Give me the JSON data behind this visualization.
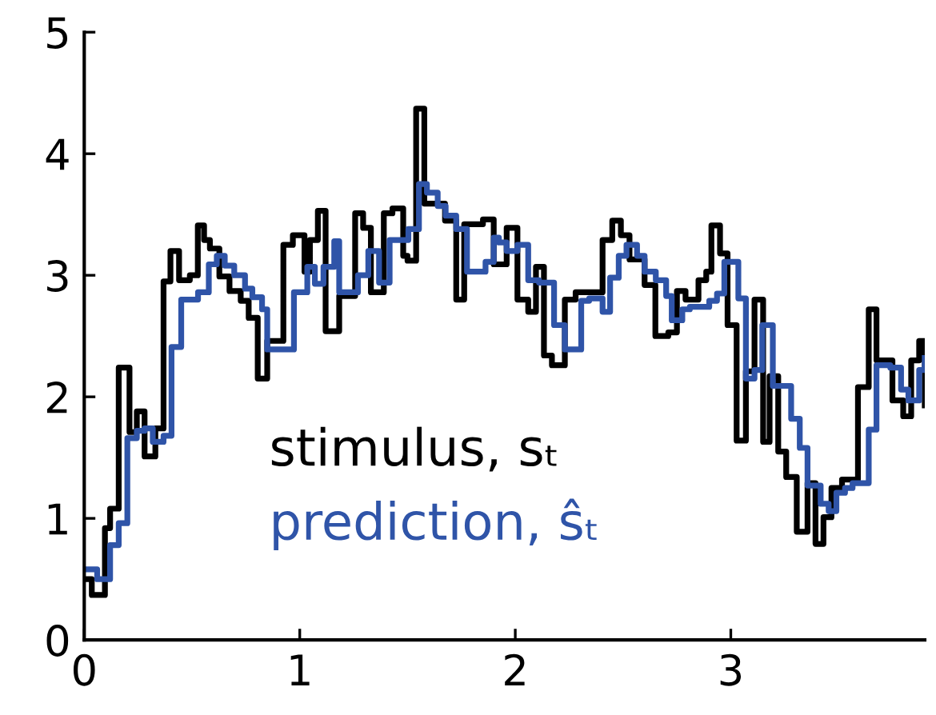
{
  "chart_data": {
    "type": "step",
    "xlim": [
      0,
      3.9
    ],
    "ylim": [
      0,
      5
    ],
    "xticks": [
      0,
      1,
      2,
      3
    ],
    "yticks": [
      0,
      1,
      2,
      3,
      4,
      5
    ],
    "grid": false,
    "legend": false,
    "series": [
      {
        "name": "stimulus, sₜ",
        "color": "#000000",
        "x": [
          0,
          0.035,
          0.096,
          0.12,
          0.16,
          0.21,
          0.244,
          0.28,
          0.33,
          0.368,
          0.4,
          0.44,
          0.49,
          0.527,
          0.556,
          0.583,
          0.627,
          0.674,
          0.726,
          0.763,
          0.805,
          0.849,
          0.924,
          0.968,
          1.022,
          1.047,
          1.084,
          1.12,
          1.183,
          1.257,
          1.294,
          1.33,
          1.39,
          1.43,
          1.48,
          1.5,
          1.54,
          1.578,
          1.674,
          1.726,
          1.763,
          1.85,
          1.9,
          1.96,
          2.01,
          2.06,
          2.096,
          2.133,
          2.17,
          2.23,
          2.28,
          2.405,
          2.45,
          2.49,
          2.53,
          2.6,
          2.65,
          2.71,
          2.75,
          2.79,
          2.85,
          2.886,
          2.91,
          2.95,
          2.985,
          3.027,
          3.07,
          3.11,
          3.15,
          3.18,
          3.22,
          3.257,
          3.306,
          3.356,
          3.393,
          3.43,
          3.467,
          3.516,
          3.59,
          3.64,
          3.676,
          3.75,
          3.8,
          3.837,
          3.874,
          3.9
        ],
        "values": [
          0.5,
          0.37,
          0.92,
          1.08,
          2.24,
          1.71,
          1.88,
          1.51,
          1.74,
          2.95,
          3.2,
          2.96,
          3.0,
          3.41,
          3.29,
          3.22,
          2.99,
          2.87,
          2.79,
          2.65,
          2.15,
          2.46,
          3.25,
          3.33,
          3.03,
          3.29,
          3.53,
          2.54,
          2.83,
          3.51,
          3.39,
          2.86,
          3.51,
          3.55,
          3.16,
          3.12,
          4.37,
          3.59,
          3.45,
          2.8,
          3.42,
          3.46,
          3.09,
          3.39,
          2.8,
          2.7,
          3.07,
          2.34,
          2.26,
          2.8,
          2.86,
          3.29,
          3.45,
          3.33,
          3.13,
          2.92,
          2.5,
          2.53,
          2.87,
          2.8,
          2.96,
          3.03,
          3.41,
          3.18,
          2.59,
          1.64,
          2.21,
          2.8,
          1.63,
          2.17,
          1.55,
          1.34,
          0.89,
          1.29,
          0.79,
          1.01,
          1.25,
          1.32,
          2.08,
          2.72,
          2.3,
          1.97,
          1.84,
          2.3,
          2.46,
          1.93
        ]
      },
      {
        "name": "prediction, ŝₜ",
        "color": "#2f54a8",
        "x": [
          0,
          0.06,
          0.12,
          0.16,
          0.2,
          0.244,
          0.28,
          0.318,
          0.368,
          0.405,
          0.45,
          0.528,
          0.578,
          0.615,
          0.652,
          0.696,
          0.746,
          0.78,
          0.825,
          0.849,
          0.973,
          1.035,
          1.07,
          1.11,
          1.16,
          1.183,
          1.27,
          1.318,
          1.368,
          1.417,
          1.504,
          1.553,
          1.59,
          1.64,
          1.677,
          1.726,
          1.776,
          1.862,
          1.9,
          1.924,
          1.96,
          2.01,
          2.06,
          2.11,
          2.18,
          2.23,
          2.306,
          2.343,
          2.405,
          2.44,
          2.48,
          2.516,
          2.565,
          2.6,
          2.652,
          2.7,
          2.726,
          2.775,
          2.81,
          2.9,
          2.936,
          2.97,
          3.035,
          3.07,
          3.11,
          3.146,
          3.195,
          3.28,
          3.32,
          3.356,
          3.417,
          3.454,
          3.49,
          3.53,
          3.565,
          3.64,
          3.676,
          3.74,
          3.79,
          3.824,
          3.874,
          3.9
        ],
        "values": [
          0.58,
          0.5,
          0.78,
          0.96,
          1.66,
          1.72,
          1.74,
          1.63,
          1.68,
          2.41,
          2.8,
          2.86,
          3.09,
          3.16,
          3.08,
          3.0,
          2.89,
          2.82,
          2.72,
          2.39,
          2.86,
          3.07,
          2.93,
          3.07,
          3.28,
          2.86,
          3.0,
          3.2,
          2.94,
          3.29,
          3.38,
          3.75,
          3.68,
          3.57,
          3.49,
          3.38,
          3.03,
          3.11,
          3.31,
          3.27,
          3.2,
          3.25,
          2.96,
          2.94,
          2.59,
          2.39,
          2.79,
          2.81,
          2.7,
          2.98,
          3.16,
          3.25,
          3.16,
          3.03,
          2.96,
          2.83,
          2.63,
          2.72,
          2.74,
          2.79,
          2.85,
          3.11,
          2.81,
          2.15,
          2.22,
          2.59,
          2.09,
          1.82,
          1.58,
          1.27,
          1.12,
          1.06,
          1.21,
          1.25,
          1.29,
          1.73,
          2.26,
          2.24,
          2.06,
          1.97,
          2.22,
          2.32
        ]
      }
    ]
  }
}
